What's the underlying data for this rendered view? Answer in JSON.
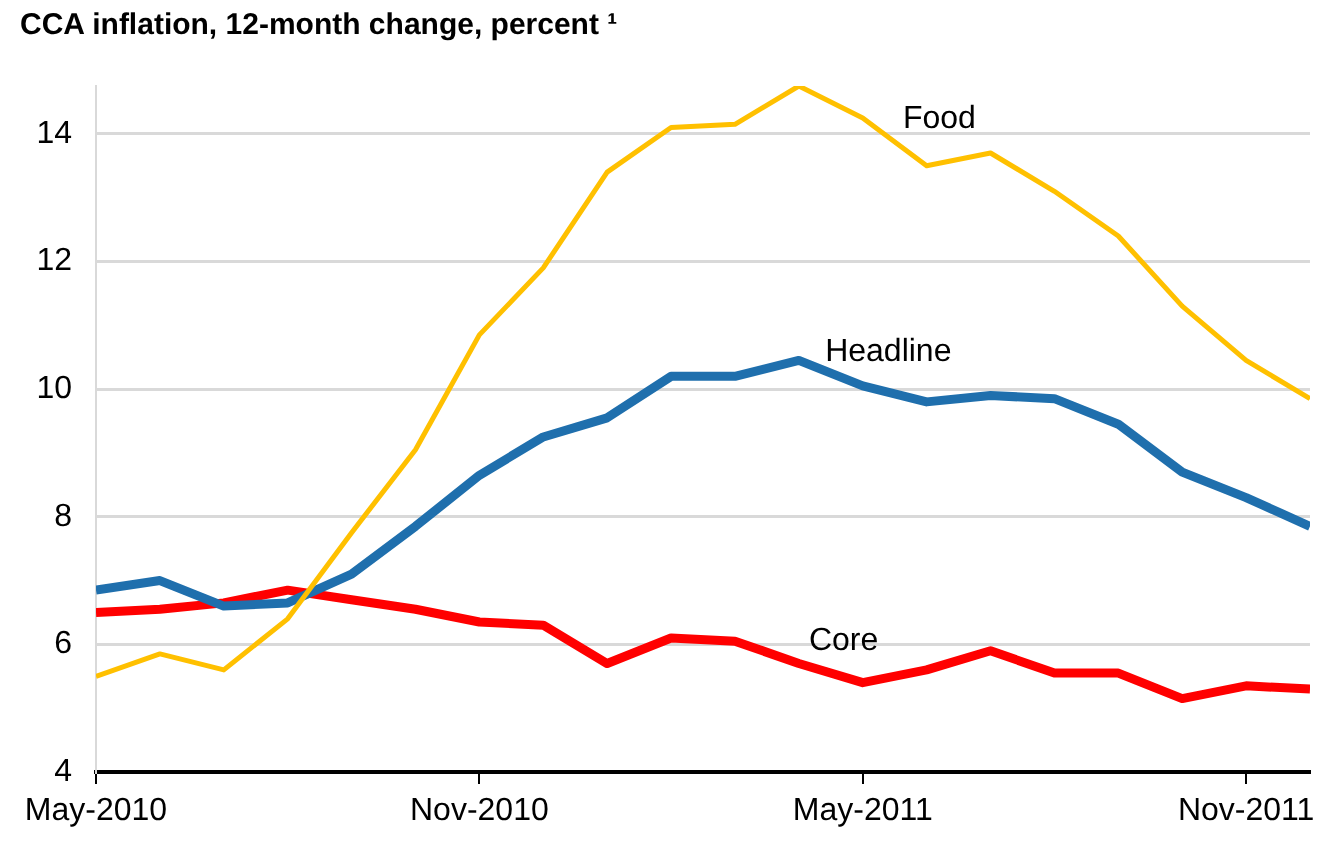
{
  "chart_data": {
    "type": "line",
    "title": "CCA inflation, 12-month change, percent ¹",
    "x": [
      "2010-05",
      "2010-06",
      "2010-07",
      "2010-08",
      "2010-09",
      "2010-10",
      "2010-11",
      "2010-12",
      "2011-01",
      "2011-02",
      "2011-03",
      "2011-04",
      "2011-05",
      "2011-06",
      "2011-07",
      "2011-08",
      "2011-09",
      "2011-10",
      "2011-11",
      "2011-12"
    ],
    "series": [
      {
        "name": "Food",
        "color": "#ffc000",
        "values": [
          5.5,
          5.85,
          5.6,
          6.4,
          7.75,
          9.05,
          10.85,
          11.9,
          13.4,
          14.1,
          14.15,
          14.75,
          14.25,
          13.5,
          13.7,
          13.1,
          12.4,
          11.3,
          10.45,
          9.85
        ]
      },
      {
        "name": "Headline",
        "color": "#1f6fad",
        "values": [
          6.85,
          7.0,
          6.6,
          6.65,
          7.1,
          7.85,
          8.65,
          9.25,
          9.55,
          10.2,
          10.2,
          10.45,
          10.05,
          9.8,
          9.9,
          9.85,
          9.45,
          8.7,
          8.3,
          7.85
        ]
      },
      {
        "name": "Core",
        "color": "#ff0000",
        "values": [
          6.5,
          6.55,
          6.65,
          6.85,
          6.7,
          6.55,
          6.35,
          6.3,
          5.7,
          6.1,
          6.05,
          5.7,
          5.4,
          5.6,
          5.9,
          5.55,
          5.55,
          5.15,
          5.35,
          5.3
        ]
      }
    ],
    "xlim": [
      "2010-05",
      "2011-12"
    ],
    "xticks": [
      {
        "value": "2010-05",
        "label": "May-2010"
      },
      {
        "value": "2010-11",
        "label": "Nov-2010"
      },
      {
        "value": "2011-05",
        "label": "May-2011"
      },
      {
        "value": "2011-11",
        "label": "Nov-2011"
      }
    ],
    "ylim": [
      4,
      14.75
    ],
    "yticks": [
      4,
      6,
      8,
      10,
      12,
      14
    ],
    "grid": "y",
    "legend": false,
    "marker": "none",
    "line_style": "solid"
  }
}
